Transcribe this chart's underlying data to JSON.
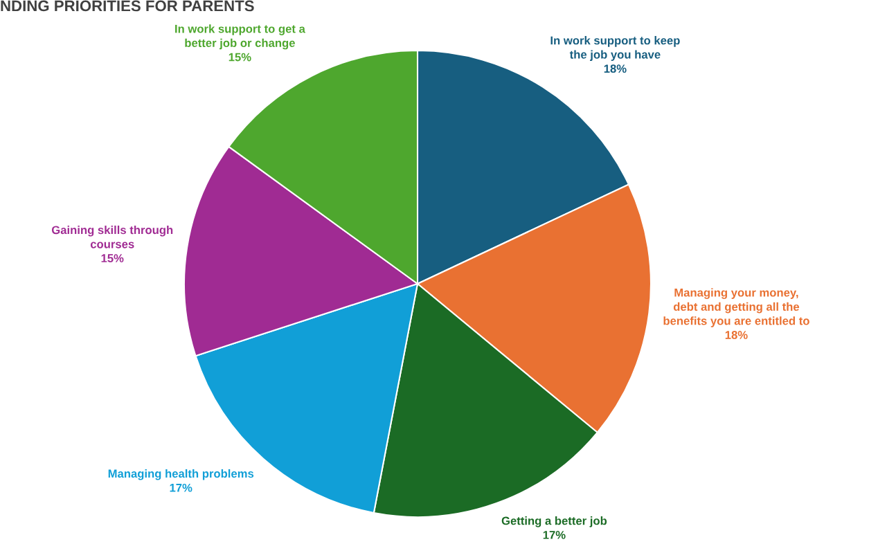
{
  "chart_data": {
    "type": "pie",
    "title": "NDING PRIORITIES FOR PARENTS",
    "categories": [
      "In work support to keep\nthe job you have",
      "Managing your money,\ndebt and getting all the\nbenefits you are entitled to",
      "Getting a better job",
      "Managing health problems",
      "Gaining skills through\ncourses",
      "In work support to get a\nbetter job or change"
    ],
    "values": [
      18,
      18,
      17,
      17,
      15,
      15
    ],
    "colors": [
      "#175e80",
      "#e97132",
      "#1b6b25",
      "#119fd7",
      "#a02b93",
      "#4ea72e"
    ],
    "value_labels": [
      "18%",
      "18%",
      "17%",
      "17%",
      "15%",
      "15%"
    ]
  }
}
